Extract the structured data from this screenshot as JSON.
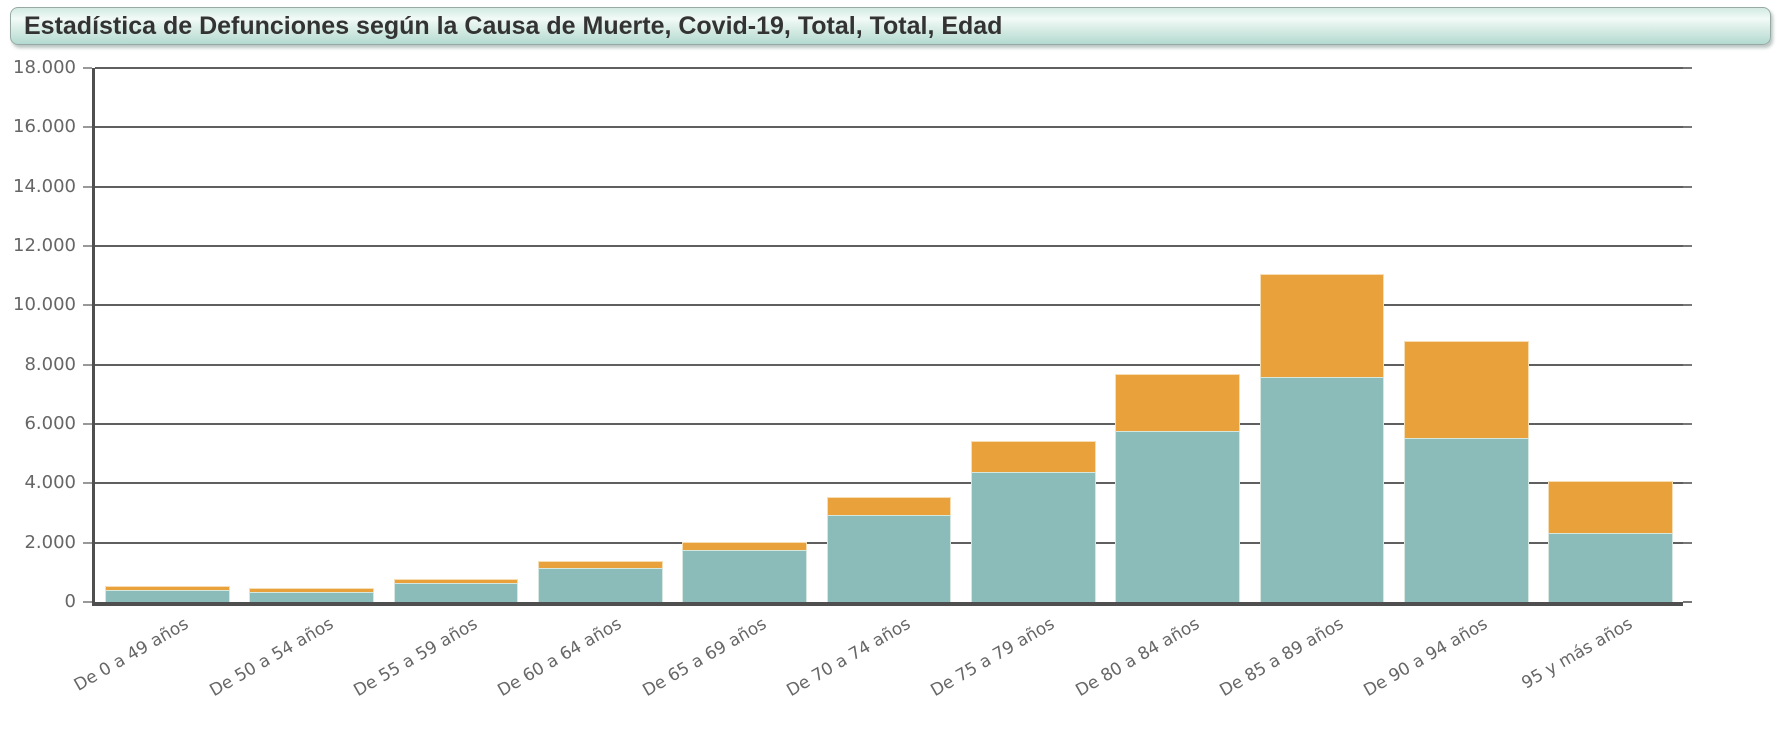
{
  "title": "Estadística de Defunciones según la Causa de Muerte, Covid-19, Total, Total, Edad",
  "chart_data": {
    "type": "bar",
    "stacked": true,
    "title": "Estadística de Defunciones según la Causa de Muerte, Covid-19, Total, Total, Edad",
    "categories": [
      "De 0 a 49 años",
      "De 50 a 54 años",
      "De 55 a 59 años",
      "De 60 a 64 años",
      "De 65 a 69 años",
      "De 70 a 74 años",
      "De 75 a 79 años",
      "De 80 a 84 años",
      "De 85 a 89 años",
      "De 90 a 94 años",
      "95 y más años"
    ],
    "series": [
      {
        "name": "teal-segment",
        "color": "#8BBCBA",
        "values": [
          400,
          335,
          645,
          1160,
          1750,
          2935,
          4380,
          5775,
          7580,
          5530,
          2310
        ]
      },
      {
        "name": "orange-segment",
        "color": "#E9A13C",
        "values": [
          135,
          135,
          145,
          210,
          290,
          610,
          1060,
          1925,
          3490,
          3255,
          1765
        ]
      }
    ],
    "xlabel": "",
    "ylabel": "",
    "ylim": [
      0,
      18000
    ],
    "grid": true,
    "legend": "none",
    "yticks": [
      {
        "v": 0,
        "label": "0"
      },
      {
        "v": 2000,
        "label": "2.000"
      },
      {
        "v": 4000,
        "label": "4.000"
      },
      {
        "v": 6000,
        "label": "6.000"
      },
      {
        "v": 8000,
        "label": "8.000"
      },
      {
        "v": 10000,
        "label": "10.000"
      },
      {
        "v": 12000,
        "label": "12.000"
      },
      {
        "v": 14000,
        "label": "14.000"
      },
      {
        "v": 16000,
        "label": "16.000"
      },
      {
        "v": 18000,
        "label": "18.000"
      }
    ]
  },
  "colors": {
    "bar_teal": "#8BBCBA",
    "bar_orange": "#E9A13C",
    "gridline": "#5F5F5F",
    "axis": "#4F4F4F",
    "tick": "#999999",
    "axis_label_text": "#666666",
    "title_text": "#333333",
    "title_bg_top": "#D2EAE2",
    "title_bg_bottom": "#B3DAD0",
    "title_border": "#98A8A4"
  }
}
